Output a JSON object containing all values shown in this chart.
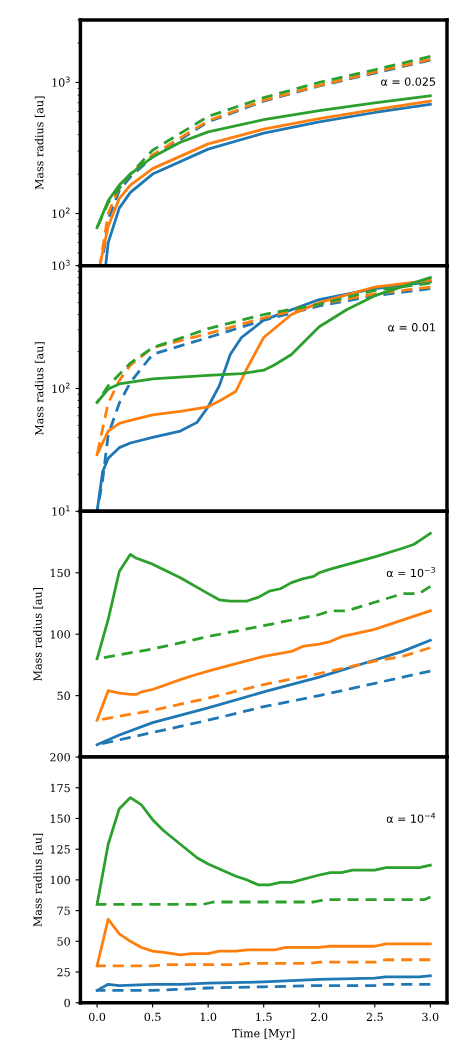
{
  "chart_data": [
    {
      "type": "line",
      "ylabel": "Mass radius [au]",
      "log": "y",
      "tick_labels": "y",
      "xlim": [
        -0.15,
        3.15
      ],
      "xticks": [
        0,
        0.5,
        1,
        1.5,
        2,
        2.5,
        3
      ],
      "ylim": [
        40,
        3000
      ],
      "yticks": [
        {
          "value": 100,
          "label": "10$^{2}$"
        },
        {
          "value": 1000,
          "label": "10$^{3}$"
        }
      ],
      "annotations": [
        "α = 0.025"
      ],
      "series": [
        {
          "color": "#1f77b4",
          "line_style": "solid",
          "x": [
            0.08,
            0.1,
            0.2,
            0.3,
            0.5,
            1,
            1.5,
            2,
            2.5,
            3
          ],
          "values": [
            42,
            60,
            110,
            145,
            200,
            310,
            410,
            500,
            590,
            680
          ]
        },
        {
          "color": "#1f77b4",
          "line_style": "dashed",
          "x": [
            0.05,
            0.1,
            0.2,
            0.3,
            0.5,
            1,
            1.5,
            2,
            2.5,
            3
          ],
          "values": [
            45,
            90,
            150,
            190,
            270,
            500,
            720,
            940,
            1180,
            1480
          ]
        },
        {
          "color": "#ff7f0e",
          "line_style": "solid",
          "x": [
            0.03,
            0.1,
            0.2,
            0.3,
            0.5,
            1,
            1.5,
            2,
            2.5,
            3
          ],
          "values": [
            42,
            80,
            130,
            165,
            220,
            340,
            440,
            530,
            620,
            720
          ]
        },
        {
          "color": "#ff7f0e",
          "line_style": "dashed",
          "x": [
            0.03,
            0.1,
            0.2,
            0.3,
            0.5,
            1,
            1.5,
            2,
            2.5,
            3
          ],
          "values": [
            42,
            100,
            160,
            200,
            280,
            510,
            730,
            950,
            1200,
            1500
          ]
        },
        {
          "color": "#2ca02c",
          "line_style": "solid",
          "x": [
            0,
            0.1,
            0.2,
            0.3,
            0.5,
            0.75,
            1,
            1.5,
            2,
            2.5,
            3
          ],
          "values": [
            78,
            125,
            165,
            200,
            270,
            350,
            420,
            520,
            610,
            700,
            790
          ]
        },
        {
          "color": "#2ca02c",
          "line_style": "dashed",
          "x": [
            0,
            0.1,
            0.3,
            0.5,
            1,
            1.5,
            2,
            2.5,
            3
          ],
          "values": [
            78,
            121,
            200,
            304,
            550,
            766,
            1000,
            1250,
            1580
          ]
        }
      ]
    },
    {
      "type": "line",
      "ylabel": "Mass radius [au]",
      "log": "y",
      "tick_labels": "y",
      "xlim": [
        -0.15,
        3.15
      ],
      "xticks": [
        0,
        0.5,
        1,
        1.5,
        2,
        2.5,
        3
      ],
      "ylim": [
        10,
        1000
      ],
      "yticks": [
        {
          "value": 10,
          "label": "10$^{1}$"
        },
        {
          "value": 100,
          "label": "10$^{2}$"
        },
        {
          "value": 1000,
          "label": "10$^{3}$"
        }
      ],
      "annotations": [
        "α = 0.01"
      ],
      "series": [
        {
          "color": "#1f77b4",
          "line_style": "solid",
          "x": [
            0,
            0.05,
            0.1,
            0.2,
            0.3,
            0.5,
            0.75,
            0.9,
            1,
            1.1,
            1.2,
            1.3,
            1.5,
            2,
            2.5,
            3
          ],
          "values": [
            10,
            21,
            27,
            33,
            36,
            40,
            45,
            53,
            71,
            105,
            190,
            260,
            360,
            530,
            650,
            740
          ]
        },
        {
          "color": "#1f77b4",
          "line_style": "dashed",
          "x": [
            0,
            0.05,
            0.1,
            0.2,
            0.3,
            0.5,
            1,
            1.5,
            2,
            2.5,
            3
          ],
          "values": [
            10,
            18,
            42,
            76,
            112,
            190,
            260,
            360,
            470,
            570,
            650
          ]
        },
        {
          "color": "#ff7f0e",
          "line_style": "solid",
          "x": [
            0,
            0.1,
            0.2,
            0.3,
            0.5,
            0.75,
            1,
            1.1,
            1.25,
            1.35,
            1.5,
            1.75,
            2,
            2.5,
            3
          ],
          "values": [
            29,
            45,
            52,
            55,
            61,
            65,
            71,
            79,
            95,
            146,
            260,
            400,
            500,
            670,
            760
          ]
        },
        {
          "color": "#ff7f0e",
          "line_style": "dashed",
          "x": [
            0,
            0.1,
            0.2,
            0.3,
            0.5,
            1,
            1.5,
            2,
            2.5,
            3
          ],
          "values": [
            29,
            76,
            116,
            155,
            215,
            280,
            375,
            485,
            590,
            670
          ]
        },
        {
          "color": "#2ca02c",
          "line_style": "solid",
          "x": [
            0,
            0.1,
            0.2,
            0.5,
            1,
            1.3,
            1.5,
            1.6,
            1.75,
            2,
            2.25,
            2.5,
            3
          ],
          "values": [
            77,
            99,
            109,
            120,
            128,
            132,
            141,
            156,
            189,
            318,
            440,
            570,
            800
          ]
        },
        {
          "color": "#2ca02c",
          "line_style": "dashed",
          "x": [
            0,
            0.1,
            0.3,
            0.5,
            1,
            1.5,
            2,
            2.5,
            3
          ],
          "values": [
            77,
            105,
            161,
            215,
            307,
            400,
            485,
            630,
            720
          ]
        }
      ]
    },
    {
      "type": "line",
      "ylabel": "Mass radius [au]",
      "tick_labels": "y",
      "xlim": [
        -0.15,
        3.15
      ],
      "xticks": [
        0,
        0.5,
        1,
        1.5,
        2,
        2.5,
        3
      ],
      "ylim": [
        0,
        200
      ],
      "yticks": [
        50,
        100,
        150
      ],
      "annotations": [
        "α = 10$^{−3}$"
      ],
      "series": [
        {
          "color": "#1f77b4",
          "line_style": "solid",
          "x": [
            0,
            0.2,
            0.5,
            1,
            1.5,
            2,
            2.5,
            2.75,
            3
          ],
          "values": [
            10,
            18,
            28,
            40,
            53,
            65,
            79,
            86,
            95
          ]
        },
        {
          "color": "#1f77b4",
          "line_style": "dashed",
          "x": [
            0,
            0.5,
            1,
            1.5,
            2,
            2.5,
            3
          ],
          "values": [
            10,
            20,
            30,
            41,
            50,
            60,
            70
          ]
        },
        {
          "color": "#ff7f0e",
          "line_style": "solid",
          "x": [
            0,
            0.1,
            0.2,
            0.3,
            0.35,
            0.4,
            0.5,
            0.75,
            0.85,
            1,
            1.25,
            1.5,
            1.75,
            1.85,
            2,
            2.1,
            2.2,
            2.5,
            2.6,
            2.7,
            3
          ],
          "values": [
            30,
            54,
            52,
            51,
            51,
            53,
            55,
            63,
            66,
            70,
            76,
            82,
            86,
            90,
            92,
            94,
            98,
            104,
            107,
            110,
            119
          ]
        },
        {
          "color": "#ff7f0e",
          "line_style": "dashed",
          "x": [
            0,
            0.5,
            1,
            1.5,
            2,
            2.5,
            2.75,
            3
          ],
          "values": [
            30,
            38,
            48,
            59,
            68,
            78,
            82,
            89
          ]
        },
        {
          "color": "#2ca02c",
          "line_style": "solid",
          "x": [
            0,
            0.1,
            0.2,
            0.3,
            0.35,
            0.5,
            0.75,
            1,
            1.1,
            1.2,
            1.35,
            1.45,
            1.55,
            1.65,
            1.75,
            1.85,
            1.95,
            2,
            2.1,
            2.5,
            2.75,
            2.85,
            2.9,
            3
          ],
          "values": [
            80,
            112,
            151,
            165,
            162,
            157,
            146,
            133,
            128,
            127,
            127,
            130,
            135,
            137,
            142,
            145,
            147,
            150,
            153,
            163,
            170,
            173,
            176,
            182
          ]
        },
        {
          "color": "#2ca02c",
          "line_style": "dashed",
          "x": [
            0,
            0.5,
            1,
            1.05,
            1.5,
            2,
            2.1,
            2.25,
            2.5,
            2.75,
            2.9,
            3
          ],
          "values": [
            80,
            88,
            98,
            99,
            107,
            116,
            119,
            119,
            126,
            133,
            133,
            139
          ]
        }
      ]
    },
    {
      "type": "line",
      "ylabel": "Mass radius [au]",
      "xlabel": "Time [Myr]",
      "xlim": [
        -0.15,
        3.15
      ],
      "xticks": [
        {
          "value": 0,
          "label": "0.0"
        },
        0.5,
        {
          "value": 1,
          "label": "1.0"
        },
        1.5,
        {
          "value": 2,
          "label": "2.0"
        },
        2.5,
        {
          "value": 3,
          "label": "3.0"
        }
      ],
      "ylim": [
        0,
        200
      ],
      "yticks": [
        0,
        25,
        50,
        75,
        100,
        125,
        150,
        175,
        200
      ],
      "annotations": [
        "α = 10$^{−4}$"
      ],
      "series": [
        {
          "color": "#1f77b4",
          "line_style": "solid",
          "x": [
            0,
            0.1,
            0.2,
            0.5,
            0.75,
            1,
            1.5,
            2,
            2.5,
            2.6,
            2.9,
            3
          ],
          "values": [
            10,
            15,
            14,
            15,
            15,
            16,
            17,
            19,
            20,
            21,
            21,
            22
          ]
        },
        {
          "color": "#1f77b4",
          "line_style": "dashed",
          "x": [
            0,
            0.2,
            0.5,
            1,
            1.5,
            2,
            2.5,
            2.6,
            3
          ],
          "values": [
            10,
            10,
            10,
            12,
            13,
            14,
            14,
            15,
            15
          ]
        },
        {
          "color": "#ff7f0e",
          "line_style": "solid",
          "x": [
            0,
            0.1,
            0.2,
            0.3,
            0.4,
            0.5,
            0.6,
            0.75,
            0.85,
            1,
            1.1,
            1.25,
            1.35,
            1.6,
            1.7,
            2,
            2.1,
            2.5,
            2.6,
            3
          ],
          "values": [
            30,
            68,
            56,
            50,
            45,
            42,
            41,
            39,
            40,
            40,
            42,
            42,
            43,
            43,
            45,
            45,
            46,
            46,
            48,
            48
          ]
        },
        {
          "color": "#ff7f0e",
          "line_style": "dashed",
          "x": [
            0,
            0.5,
            0.6,
            1.25,
            1.35,
            1.9,
            2,
            2.5,
            2.6,
            3
          ],
          "values": [
            30,
            30,
            31,
            31,
            32,
            32,
            33,
            33,
            35,
            35
          ]
        },
        {
          "color": "#2ca02c",
          "line_style": "solid",
          "x": [
            0,
            0.1,
            0.2,
            0.3,
            0.4,
            0.5,
            0.6,
            0.75,
            0.9,
            1,
            1.25,
            1.35,
            1.45,
            1.55,
            1.65,
            1.75,
            2,
            2.1,
            2.2,
            2.3,
            2.5,
            2.6,
            2.9,
            3
          ],
          "values": [
            80,
            129,
            158,
            167,
            161,
            149,
            140,
            129,
            118,
            113,
            103,
            100,
            96,
            96,
            98,
            98,
            104,
            106,
            106,
            108,
            108,
            110,
            110,
            112
          ]
        },
        {
          "color": "#2ca02c",
          "line_style": "dashed",
          "x": [
            0,
            0.95,
            1.05,
            1.95,
            2.05,
            2.95,
            3
          ],
          "values": [
            80,
            80,
            82,
            82,
            84,
            84,
            86
          ]
        }
      ]
    }
  ]
}
